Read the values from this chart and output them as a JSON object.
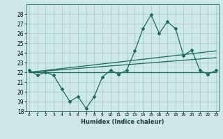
{
  "xlabel": "Humidex (Indice chaleur)",
  "bg_color": "#cce8e8",
  "grid_color": "#aacccc",
  "line_color": "#1a6b5a",
  "ylim": [
    18,
    29
  ],
  "yticks": [
    18,
    19,
    20,
    21,
    22,
    23,
    24,
    25,
    26,
    27,
    28
  ],
  "main_x": [
    0,
    1,
    2,
    3,
    4,
    5,
    6,
    7,
    8,
    9,
    10,
    11,
    12,
    13,
    14,
    15,
    16,
    17,
    18,
    19,
    20,
    21,
    22,
    23
  ],
  "main_y": [
    22.2,
    21.7,
    22.0,
    21.7,
    20.3,
    19.0,
    19.5,
    18.3,
    19.5,
    21.5,
    22.2,
    21.8,
    22.2,
    24.2,
    26.5,
    27.9,
    26.0,
    27.2,
    26.5,
    23.7,
    24.3,
    22.2,
    21.8,
    22.2
  ],
  "line1_x": [
    0,
    23
  ],
  "line1_y": [
    22.0,
    22.0
  ],
  "line2_x": [
    0,
    23
  ],
  "line2_y": [
    22.0,
    23.5
  ],
  "line3_x": [
    0,
    23
  ],
  "line3_y": [
    22.0,
    24.2
  ],
  "xlim": [
    -0.3,
    23.3
  ]
}
